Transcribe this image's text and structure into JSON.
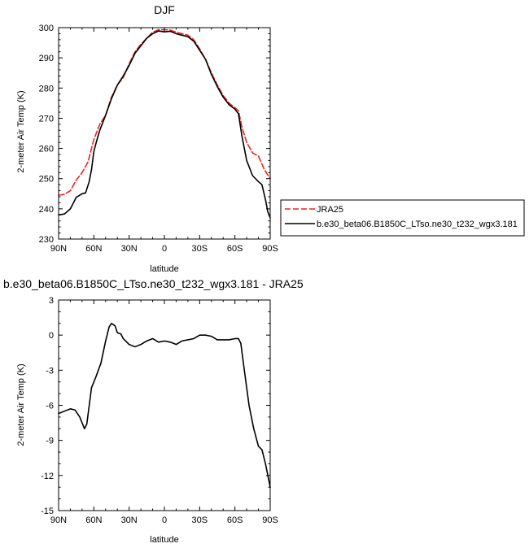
{
  "chart_data": [
    {
      "type": "line",
      "title": "DJF",
      "xlabel": "latitude",
      "ylabel": "2-meter Air Temp (K)",
      "xlim": [
        -90,
        90
      ],
      "ylim": [
        230,
        300
      ],
      "x_ticks": [
        -90,
        -60,
        -30,
        0,
        30,
        60,
        90
      ],
      "x_tick_labels": [
        "90N",
        "60N",
        "30N",
        "0",
        "30S",
        "60S",
        "90S"
      ],
      "y_ticks": [
        230,
        240,
        250,
        260,
        270,
        280,
        290,
        300
      ],
      "y_tick_labels": [
        "230",
        "240",
        "250",
        "260",
        "270",
        "280",
        "290",
        "300"
      ],
      "grid": false,
      "legend_position": "right, outside plot",
      "series": [
        {
          "name": "JRA25",
          "color": "#e8261f",
          "dash": "dashed",
          "x": [
            -90,
            -85,
            -80,
            -75,
            -70,
            -65,
            -60,
            -55,
            -50,
            -45,
            -40,
            -35,
            -30,
            -25,
            -20,
            -15,
            -10,
            -5,
            0,
            5,
            10,
            15,
            20,
            25,
            30,
            35,
            40,
            45,
            50,
            55,
            60,
            63,
            66,
            70,
            75,
            80,
            85,
            90
          ],
          "y": [
            244.5,
            244.8,
            246,
            249.5,
            252,
            255.5,
            263,
            268,
            271,
            277,
            281,
            283.5,
            288,
            292,
            294.5,
            296.5,
            298.5,
            299.3,
            299.3,
            299.2,
            298.5,
            298,
            297.5,
            296,
            293,
            289.5,
            285,
            281,
            277.5,
            275,
            273.5,
            272.5,
            267,
            262,
            258.5,
            257.5,
            253,
            250
          ]
        },
        {
          "name": "b.e30_beta06.B1850C_LTso.ne30_t232_wgx3.181",
          "color": "#000000",
          "dash": "solid",
          "x": [
            -90,
            -85,
            -80,
            -75,
            -70,
            -67,
            -64,
            -62,
            -60,
            -58,
            -55,
            -50,
            -45,
            -40,
            -35,
            -30,
            -25,
            -20,
            -15,
            -10,
            -5,
            0,
            5,
            10,
            15,
            20,
            25,
            30,
            35,
            40,
            45,
            50,
            55,
            60,
            63,
            66,
            70,
            75,
            80,
            83,
            86,
            88,
            90
          ],
          "y": [
            238,
            238.3,
            240,
            243.8,
            245,
            245.3,
            249,
            253,
            259,
            262,
            266,
            271,
            276.5,
            281,
            284,
            287.5,
            291.5,
            294,
            296.5,
            298,
            298.9,
            298.6,
            298.8,
            298,
            297.5,
            297,
            295.5,
            292.5,
            289.5,
            284.5,
            280.5,
            277,
            274.5,
            273,
            271.5,
            264,
            256,
            251,
            249,
            248,
            243,
            239,
            237
          ]
        }
      ]
    },
    {
      "type": "line",
      "title": "b.e30_beta06.B1850C_LTso.ne30_t232_wgx3.181 - JRA25",
      "xlabel": "latitude",
      "ylabel": "2-meter Air Temp (K)",
      "xlim": [
        -90,
        90
      ],
      "ylim": [
        -15,
        3
      ],
      "x_ticks": [
        -90,
        -60,
        -30,
        0,
        30,
        60,
        90
      ],
      "x_tick_labels": [
        "90N",
        "60N",
        "30N",
        "0",
        "30S",
        "60S",
        "90S"
      ],
      "y_ticks": [
        3,
        0,
        -3,
        -6,
        -9,
        -12,
        -15
      ],
      "y_tick_labels": [
        "3",
        "0",
        "-3",
        "-6",
        "-9",
        "-12",
        "-15"
      ],
      "grid": false,
      "series": [
        {
          "color": "#000000",
          "dash": "solid",
          "x": [
            -90,
            -85,
            -80,
            -76,
            -72,
            -70,
            -68,
            -66,
            -62,
            -58,
            -54,
            -50,
            -47,
            -45,
            -42,
            -40,
            -37,
            -35,
            -30,
            -25,
            -20,
            -15,
            -10,
            -5,
            0,
            5,
            10,
            15,
            20,
            25,
            30,
            35,
            40,
            45,
            50,
            55,
            60,
            63,
            65,
            68,
            72,
            76,
            80,
            83,
            86,
            90
          ],
          "y": [
            -6.7,
            -6.5,
            -6.3,
            -6.4,
            -7,
            -7.5,
            -8,
            -7.6,
            -4.5,
            -3.5,
            -2.4,
            -0.5,
            0.7,
            1,
            0.8,
            0.2,
            0.1,
            -0.3,
            -0.8,
            -1,
            -0.8,
            -0.5,
            -0.3,
            -0.6,
            -0.5,
            -0.6,
            -0.8,
            -0.5,
            -0.4,
            -0.3,
            0,
            0,
            -0.1,
            -0.4,
            -0.4,
            -0.4,
            -0.3,
            -0.3,
            -0.7,
            -3,
            -6,
            -8,
            -9.5,
            -9.8,
            -11,
            -13
          ]
        }
      ]
    }
  ]
}
